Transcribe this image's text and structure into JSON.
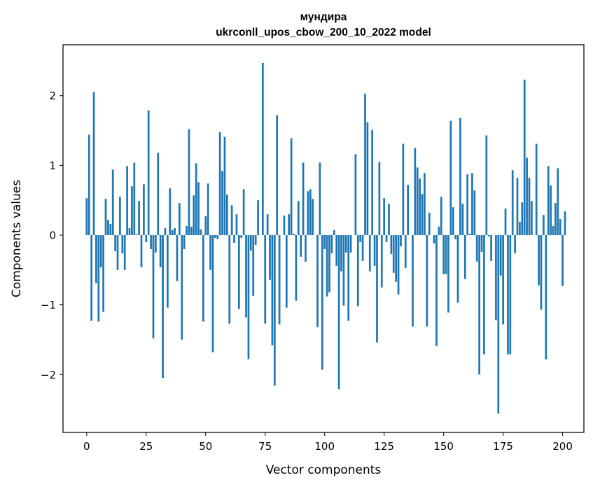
{
  "chart_data": {
    "type": "bar",
    "title_line1": "мундира",
    "title_line2": "ukrconll_upos_cbow_200_10_2022 model",
    "xlabel": "Vector components",
    "ylabel": "Components values",
    "xlim": [
      -9.95,
      208.95
    ],
    "ylim": [
      -2.83,
      2.73
    ],
    "xticks": [
      0,
      25,
      50,
      75,
      100,
      125,
      150,
      175,
      200
    ],
    "xtick_labels": [
      "0",
      "25",
      "50",
      "75",
      "100",
      "125",
      "150",
      "175",
      "200"
    ],
    "yticks": [
      -2,
      -1,
      0,
      1,
      2
    ],
    "ytick_labels": [
      "−2",
      "−1",
      "0",
      "1",
      "2"
    ],
    "bar_color": "#1f77b4",
    "bar_width": 0.8,
    "values": [
      0.53,
      1.44,
      -1.23,
      2.05,
      -0.69,
      -1.24,
      -0.46,
      -1.1,
      0.52,
      0.22,
      0.16,
      0.94,
      -0.23,
      -0.5,
      0.55,
      -0.26,
      -0.5,
      0.99,
      0.1,
      0.7,
      1.04,
      0.01,
      0.49,
      -0.46,
      0.73,
      -0.1,
      1.79,
      -0.2,
      -1.48,
      -0.25,
      1.18,
      -0.46,
      -2.05,
      0.1,
      -1.04,
      0.67,
      0.07,
      0.1,
      -0.66,
      0.46,
      -1.5,
      -0.2,
      0.13,
      1.52,
      0.12,
      0.57,
      1.03,
      0.76,
      0.08,
      -1.24,
      0.27,
      0.74,
      -0.5,
      -1.68,
      -0.04,
      -0.06,
      1.48,
      0.92,
      1.41,
      0.58,
      -1.27,
      0.43,
      -0.11,
      0.3,
      -1.06,
      -0.04,
      0.66,
      -1.18,
      -1.78,
      -0.22,
      -0.87,
      -0.14,
      0.5,
      0.0,
      2.47,
      -1.27,
      0.3,
      -0.64,
      -1.58,
      -2.16,
      1.72,
      -1.28,
      0.0,
      0.28,
      -1.04,
      0.3,
      1.39,
      0.02,
      -0.94,
      0.49,
      -0.31,
      1.04,
      -0.38,
      0.63,
      0.66,
      0.52,
      0.0,
      -1.32,
      1.04,
      -1.93,
      -0.2,
      -0.88,
      -0.82,
      -0.26,
      0.07,
      -0.44,
      -2.21,
      -0.52,
      -1.01,
      -0.25,
      -1.23,
      -0.25,
      0.0,
      1.16,
      -1.02,
      -0.1,
      -0.37,
      2.03,
      1.62,
      -0.52,
      1.51,
      -0.44,
      -1.54,
      1.05,
      -0.75,
      0.53,
      -0.1,
      0.45,
      -0.27,
      -0.54,
      -0.67,
      -0.85,
      -0.16,
      1.31,
      -0.47,
      0.72,
      0.0,
      -1.31,
      1.25,
      0.97,
      0.81,
      0.59,
      0.89,
      -1.31,
      0.32,
      0.0,
      -0.12,
      -1.59,
      0.12,
      0.55,
      -0.56,
      -0.56,
      -1.11,
      1.64,
      0.4,
      -0.06,
      -0.97,
      1.68,
      0.45,
      -0.63,
      0.87,
      0.02,
      0.89,
      0.64,
      -0.38,
      -2.0,
      -0.24,
      -1.71,
      1.43,
      -0.02,
      -0.37,
      0.0,
      -1.22,
      -2.56,
      -0.58,
      -1.28,
      0.38,
      -1.71,
      -1.71,
      0.93,
      -0.26,
      0.82,
      0.19,
      0.47,
      2.23,
      1.11,
      0.82,
      0.49,
      0.0,
      1.31,
      -0.72,
      -1.07,
      0.29,
      -1.78,
      0.99,
      0.71,
      0.13,
      0.46,
      0.96,
      0.23,
      -0.73,
      0.34
    ]
  }
}
